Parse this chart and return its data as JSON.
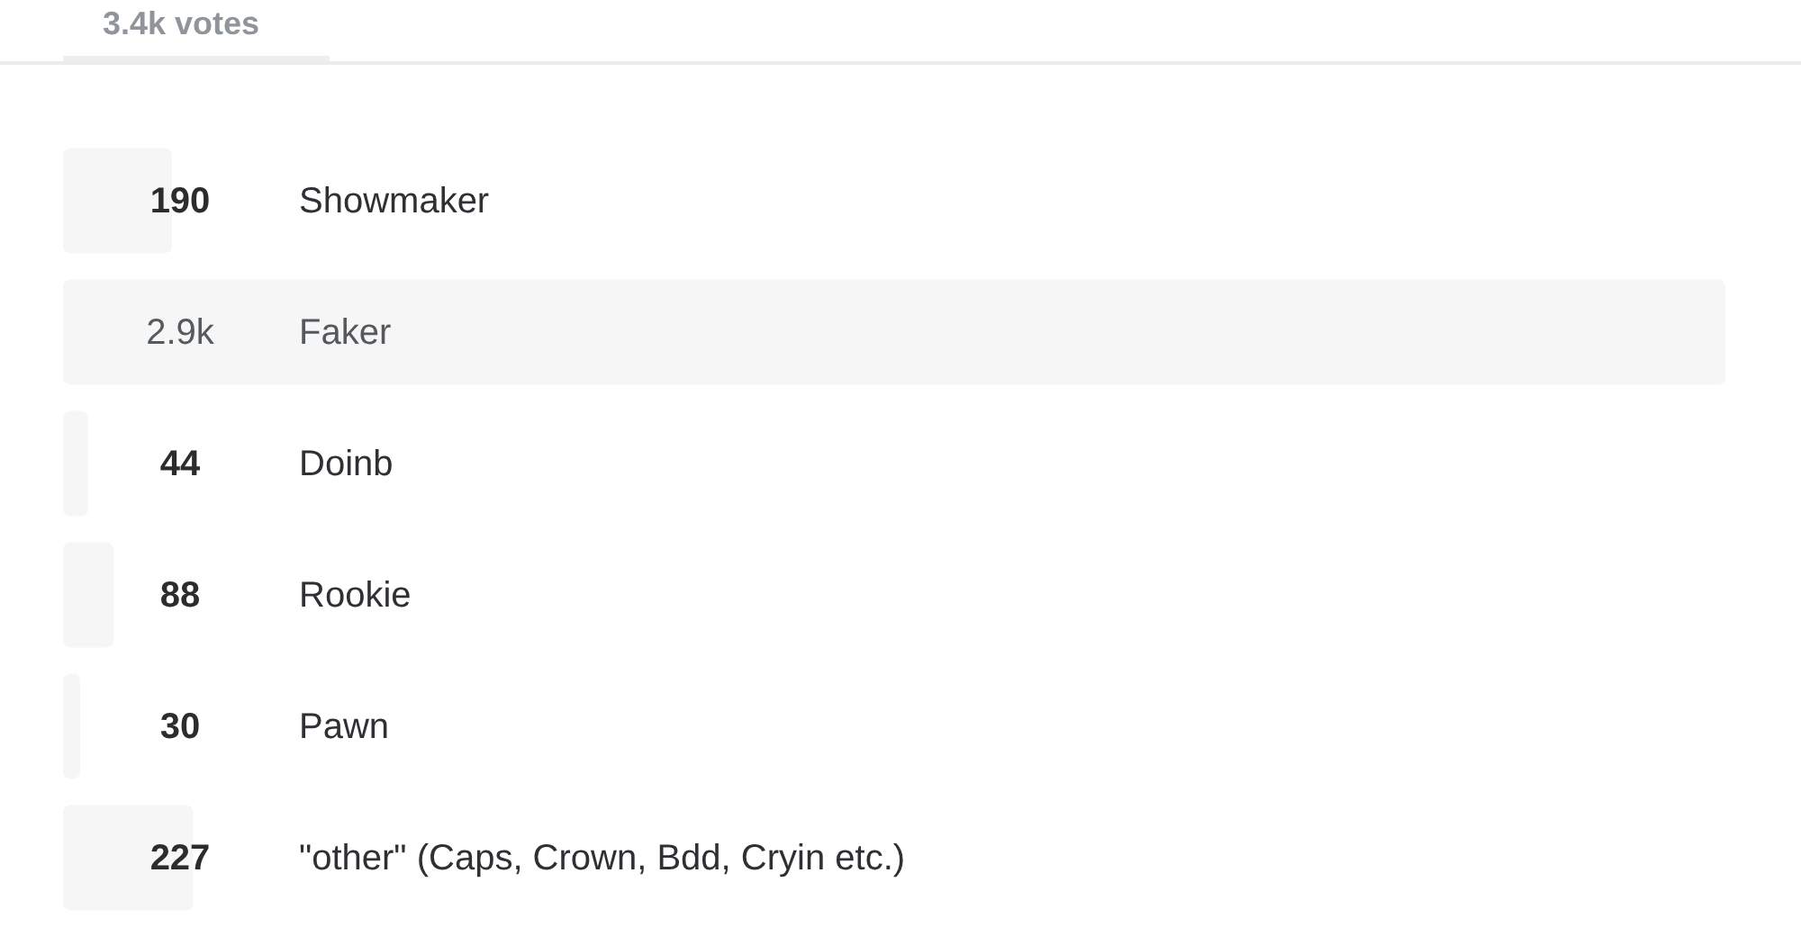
{
  "chart_data": {
    "type": "bar",
    "orientation": "horizontal",
    "title": "3.4k votes",
    "categories": [
      "Showmaker",
      "Faker",
      "Doinb",
      "Rookie",
      "Pawn",
      "\"other\" (Caps, Crown, Bdd, Cryin etc.)"
    ],
    "values": [
      190,
      2900,
      44,
      88,
      30,
      227
    ],
    "value_labels": [
      "190",
      "2.9k",
      "44",
      "88",
      "30",
      "227"
    ],
    "color": "#f6f6f7"
  }
}
